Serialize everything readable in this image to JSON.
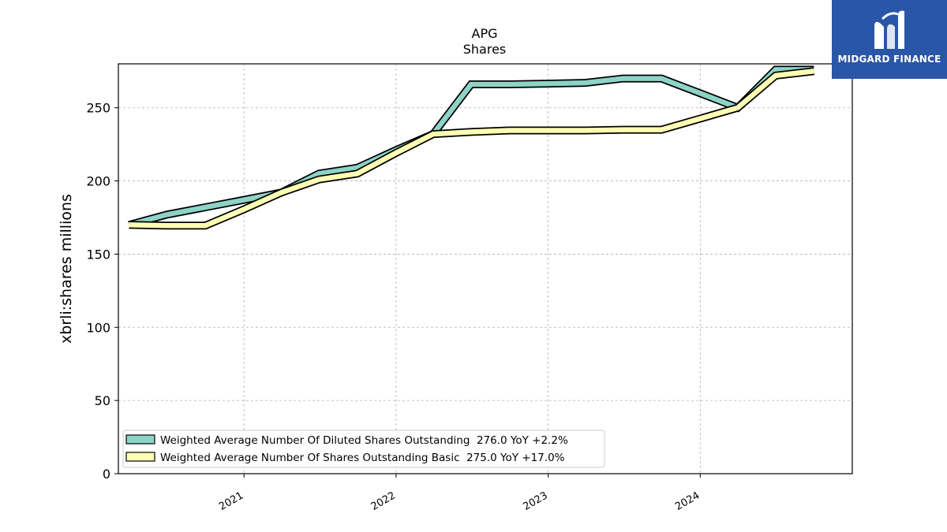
{
  "chart_data": {
    "type": "line",
    "title": "APG",
    "subtitle": "Shares",
    "ylabel": "xbrli:shares millions",
    "ylim": [
      0,
      280
    ],
    "yticks": [
      0,
      50,
      100,
      150,
      200,
      250
    ],
    "xticks": [
      "2021",
      "2022",
      "2023",
      "2024"
    ],
    "grid": true,
    "legend_position": "lower-left",
    "x": [
      "2020-03-31",
      "2020-06-30",
      "2020-09-30",
      "2020-12-31",
      "2021-03-31",
      "2021-06-30",
      "2021-09-30",
      "2021-12-31",
      "2022-03-31",
      "2022-06-30",
      "2022-09-30",
      "2022-12-31",
      "2023-03-31",
      "2023-06-30",
      "2023-09-30",
      "2023-12-31",
      "2024-03-31",
      "2024-06-30",
      "2024-09-30"
    ],
    "series": [
      {
        "name": "Weighted Average Number Of Diluted Shares Outstanding  276.0 YoY +2.2%",
        "color": "#8dd3c7",
        "values": [
          170,
          177,
          182,
          187,
          192,
          205,
          209,
          221,
          232,
          266,
          266,
          266.5,
          267,
          270,
          270,
          260,
          250,
          276,
          276
        ]
      },
      {
        "name": "Weighted Average Number Of Shares Outstanding Basic  275.0 YoY +17.0%",
        "color": "#ffffb3",
        "values": [
          170,
          169.5,
          169.5,
          180.5,
          192,
          201,
          205,
          219,
          232,
          233.5,
          234.5,
          234.5,
          234.5,
          235,
          235,
          242.5,
          250,
          272,
          275
        ]
      }
    ]
  },
  "logo": {
    "text": "MIDGARD FINANCE",
    "background": "#2a56a8"
  }
}
